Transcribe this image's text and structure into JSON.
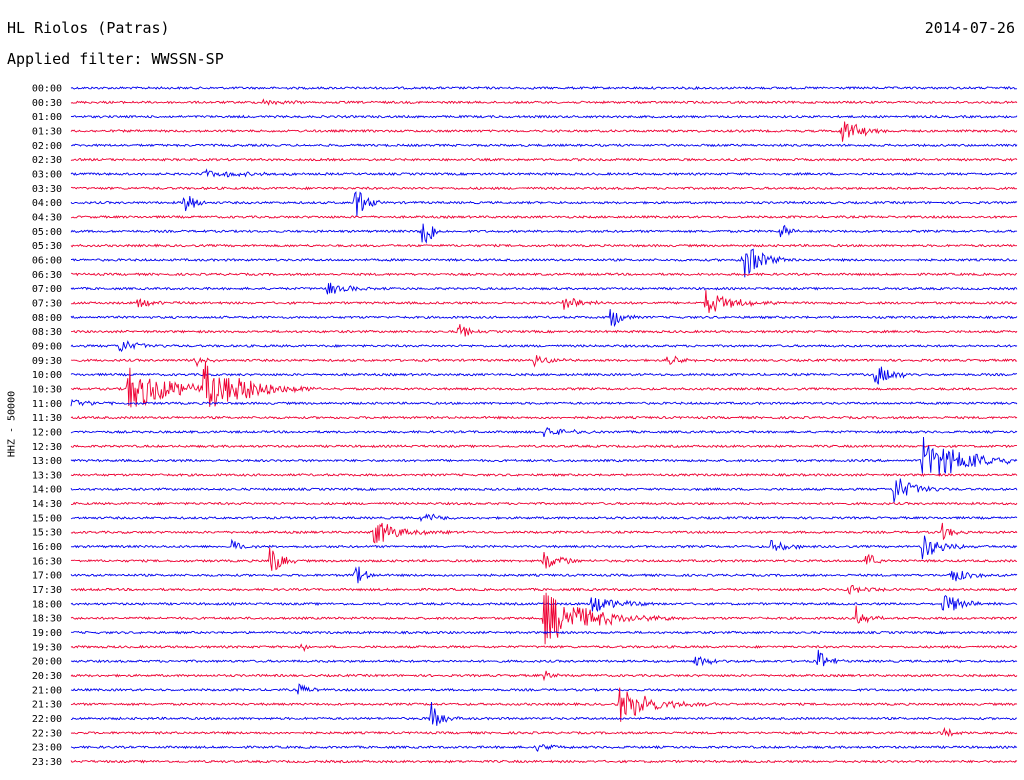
{
  "header": {
    "station": "HL Riolos (Patras)",
    "date": "2014-07-26",
    "filter_label": "Applied filter: WWSSN-SP"
  },
  "axis_label": "HHZ - 50000",
  "colors": {
    "even_trace": "#0000ee",
    "odd_trace": "#ee0033",
    "text": "#000000"
  },
  "chart_data": {
    "type": "line",
    "subtype": "helicorder",
    "time_labels": [
      "00:00",
      "00:30",
      "01:00",
      "01:30",
      "02:00",
      "02:30",
      "03:00",
      "03:30",
      "04:00",
      "04:30",
      "05:00",
      "05:30",
      "06:00",
      "06:30",
      "07:00",
      "07:30",
      "08:00",
      "08:30",
      "09:00",
      "09:30",
      "10:00",
      "10:30",
      "11:00",
      "11:30",
      "12:00",
      "12:30",
      "13:00",
      "13:30",
      "14:00",
      "14:30",
      "15:00",
      "15:30",
      "16:00",
      "16:30",
      "17:00",
      "17:30",
      "18:00",
      "18:30",
      "19:00",
      "19:30",
      "20:00",
      "20:30",
      "21:00",
      "21:30",
      "22:00",
      "22:30",
      "23:00",
      "23:30"
    ],
    "trace_minutes": 30,
    "ylabel": "HHZ - 50000",
    "events": [
      {
        "row": 1,
        "t": 0.2,
        "amp": 3,
        "w": 0.03
      },
      {
        "row": 3,
        "t": 0.815,
        "amp": 14,
        "w": 0.02
      },
      {
        "row": 6,
        "t": 0.14,
        "amp": 5,
        "w": 0.04
      },
      {
        "row": 8,
        "t": 0.12,
        "amp": 16,
        "w": 0.01
      },
      {
        "row": 8,
        "t": 0.3,
        "amp": 20,
        "w": 0.01
      },
      {
        "row": 10,
        "t": 0.37,
        "amp": 25,
        "w": 0.01
      },
      {
        "row": 10,
        "t": 0.75,
        "amp": 8,
        "w": 0.01
      },
      {
        "row": 12,
        "t": 0.71,
        "amp": 22,
        "w": 0.02
      },
      {
        "row": 14,
        "t": 0.27,
        "amp": 8,
        "w": 0.02
      },
      {
        "row": 15,
        "t": 0.07,
        "amp": 6,
        "w": 0.02
      },
      {
        "row": 15,
        "t": 0.52,
        "amp": 8,
        "w": 0.02
      },
      {
        "row": 15,
        "t": 0.67,
        "amp": 13,
        "w": 0.03
      },
      {
        "row": 16,
        "t": 0.57,
        "amp": 14,
        "w": 0.01
      },
      {
        "row": 17,
        "t": 0.41,
        "amp": 10,
        "w": 0.01
      },
      {
        "row": 18,
        "t": 0.05,
        "amp": 8,
        "w": 0.02
      },
      {
        "row": 19,
        "t": 0.13,
        "amp": 8,
        "w": 0.01
      },
      {
        "row": 19,
        "t": 0.49,
        "amp": 6,
        "w": 0.02
      },
      {
        "row": 19,
        "t": 0.63,
        "amp": 6,
        "w": 0.02
      },
      {
        "row": 20,
        "t": 0.85,
        "amp": 12,
        "w": 0.02
      },
      {
        "row": 21,
        "t": 0.06,
        "amp": 24,
        "w": 0.05
      },
      {
        "row": 21,
        "t": 0.14,
        "amp": 28,
        "w": 0.05
      },
      {
        "row": 22,
        "t": 0.0,
        "amp": 6,
        "w": 0.02
      },
      {
        "row": 24,
        "t": 0.5,
        "amp": 8,
        "w": 0.02
      },
      {
        "row": 26,
        "t": 0.9,
        "amp": 24,
        "w": 0.05
      },
      {
        "row": 28,
        "t": 0.87,
        "amp": 16,
        "w": 0.02
      },
      {
        "row": 30,
        "t": 0.37,
        "amp": 6,
        "w": 0.02
      },
      {
        "row": 31,
        "t": 0.32,
        "amp": 14,
        "w": 0.03
      },
      {
        "row": 31,
        "t": 0.92,
        "amp": 10,
        "w": 0.01
      },
      {
        "row": 32,
        "t": 0.17,
        "amp": 8,
        "w": 0.01
      },
      {
        "row": 32,
        "t": 0.74,
        "amp": 6,
        "w": 0.02
      },
      {
        "row": 32,
        "t": 0.9,
        "amp": 14,
        "w": 0.02
      },
      {
        "row": 33,
        "t": 0.21,
        "amp": 20,
        "w": 0.01
      },
      {
        "row": 33,
        "t": 0.5,
        "amp": 10,
        "w": 0.02
      },
      {
        "row": 33,
        "t": 0.84,
        "amp": 10,
        "w": 0.01
      },
      {
        "row": 34,
        "t": 0.3,
        "amp": 12,
        "w": 0.01
      },
      {
        "row": 34,
        "t": 0.93,
        "amp": 8,
        "w": 0.02
      },
      {
        "row": 35,
        "t": 0.82,
        "amp": 6,
        "w": 0.02
      },
      {
        "row": 36,
        "t": 0.55,
        "amp": 10,
        "w": 0.03
      },
      {
        "row": 36,
        "t": 0.92,
        "amp": 14,
        "w": 0.02
      },
      {
        "row": 37,
        "t": 0.5,
        "amp": 28,
        "w": 0.05
      },
      {
        "row": 37,
        "t": 0.83,
        "amp": 12,
        "w": 0.01
      },
      {
        "row": 39,
        "t": 0.24,
        "amp": 6,
        "w": 0.01
      },
      {
        "row": 40,
        "t": 0.66,
        "amp": 6,
        "w": 0.02
      },
      {
        "row": 40,
        "t": 0.79,
        "amp": 12,
        "w": 0.01
      },
      {
        "row": 41,
        "t": 0.5,
        "amp": 6,
        "w": 0.01
      },
      {
        "row": 42,
        "t": 0.24,
        "amp": 8,
        "w": 0.01
      },
      {
        "row": 43,
        "t": 0.58,
        "amp": 18,
        "w": 0.04
      },
      {
        "row": 44,
        "t": 0.38,
        "amp": 18,
        "w": 0.01
      },
      {
        "row": 45,
        "t": 0.92,
        "amp": 4,
        "w": 0.02
      },
      {
        "row": 46,
        "t": 0.49,
        "amp": 4,
        "w": 0.02
      }
    ]
  }
}
